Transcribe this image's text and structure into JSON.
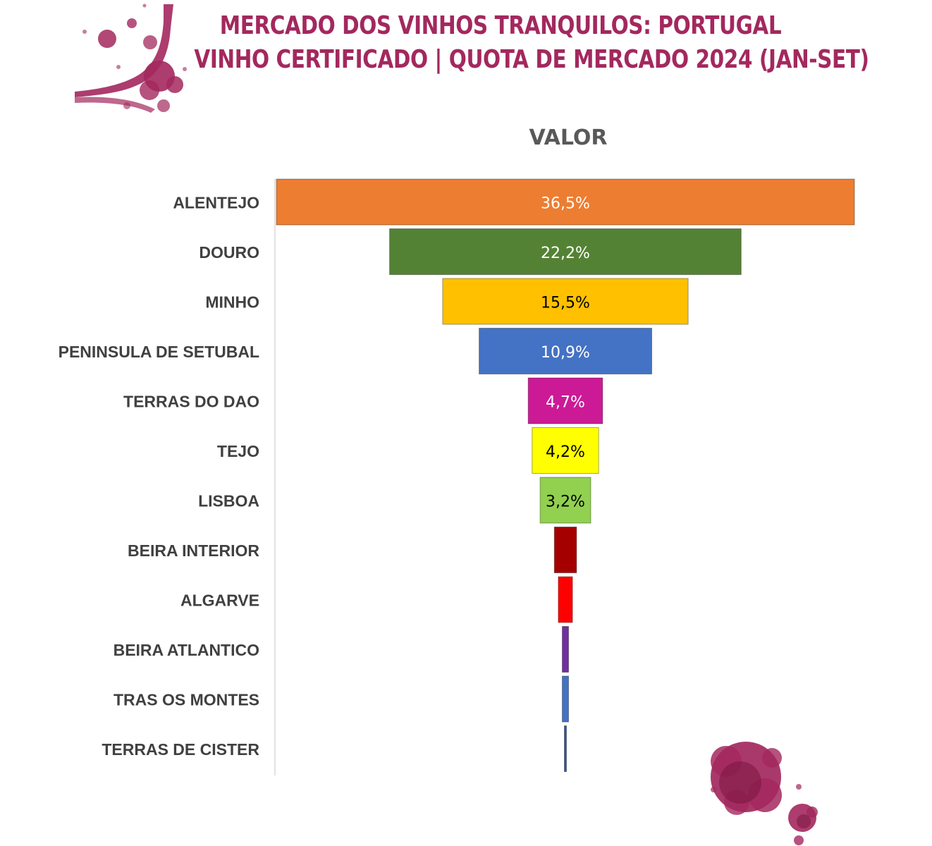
{
  "title_lines": [
    "MERCADO DOS VINHOS TRANQUILOS: PORTUGAL",
    "VINHO CERTIFICADO | QUOTA DE MERCADO 2024 (JAN-SET)"
  ],
  "colors": {
    "title": "#a3285e",
    "axis_text": "#404040",
    "subtitle": "#595959",
    "splash": "#a3285e"
  },
  "chart_data": {
    "type": "bar",
    "orientation": "funnel",
    "title": "VALOR",
    "unit": "%",
    "categories": [
      "ALENTEJO",
      "DOURO",
      "MINHO",
      "PENINSULA DE SETUBAL",
      "TERRAS DO DAO",
      "TEJO",
      "LISBOA",
      "BEIRA INTERIOR",
      "ALGARVE",
      "BEIRA ATLANTICO",
      "TRAS OS MONTES",
      "TERRAS DE CISTER"
    ],
    "values": [
      36.5,
      22.2,
      15.5,
      10.9,
      4.7,
      4.2,
      3.2,
      1.4,
      0.9,
      0.4,
      0.4,
      0.05
    ],
    "data_labels": [
      "36,5%",
      "22,2%",
      "15,5%",
      "10,9%",
      "4,7%",
      "4,2%",
      "3,2%",
      "",
      "",
      "",
      "",
      ""
    ],
    "bar_colors": [
      "#ed7d31",
      "#548235",
      "#ffc000",
      "#4472c4",
      "#cc1a97",
      "#ffff00",
      "#92d050",
      "#a50000",
      "#ff0000",
      "#7030a0",
      "#4472c4",
      "#2f5597"
    ],
    "label_colors": [
      "#ffffff",
      "#ffffff",
      "#000000",
      "#ffffff",
      "#ffffff",
      "#000000",
      "#000000",
      "#ffffff",
      "#ffffff",
      "#ffffff",
      "#ffffff",
      "#ffffff"
    ],
    "xlim": [
      0,
      36.5
    ],
    "grid": false,
    "legend": "none"
  }
}
